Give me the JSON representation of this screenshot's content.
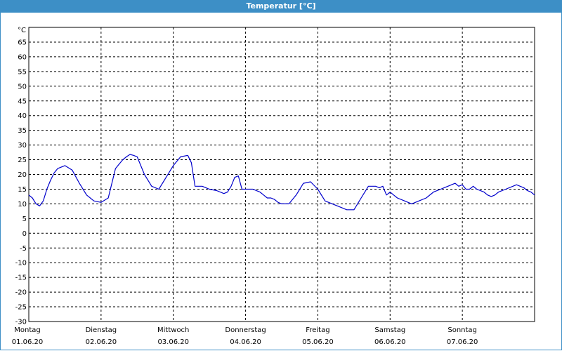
{
  "window": {
    "title": "Temperatur [°C]"
  },
  "chart_data": {
    "type": "line",
    "title": "Temperatur [°C]",
    "unit_label": "°C",
    "ylim": [
      -30,
      70
    ],
    "yticks": [
      65,
      60,
      55,
      50,
      45,
      40,
      35,
      30,
      25,
      20,
      15,
      10,
      5,
      0,
      -5,
      -10,
      -15,
      -20,
      -25,
      -30
    ],
    "xlim": [
      0,
      7
    ],
    "grid": true,
    "days": [
      {
        "name": "Montag",
        "date": "01.06.20"
      },
      {
        "name": "Dienstag",
        "date": "02.06.20"
      },
      {
        "name": "Mittwoch",
        "date": "03.06.20"
      },
      {
        "name": "Donnerstag",
        "date": "04.06.20"
      },
      {
        "name": "Freitag",
        "date": "05.06.20"
      },
      {
        "name": "Samstag",
        "date": "06.06.20"
      },
      {
        "name": "Sonntag",
        "date": "07.06.20"
      }
    ],
    "line_color": "#0000cc",
    "series": [
      {
        "x": [
          0,
          0.05,
          0.1,
          0.15,
          0.2,
          0.25,
          0.3,
          0.35,
          0.4,
          0.5,
          0.6,
          0.7,
          0.8,
          0.9,
          1.0,
          1.1,
          1.2,
          1.25,
          1.3,
          1.35,
          1.4,
          1.45,
          1.5,
          1.55,
          1.6,
          1.7,
          1.8,
          1.9,
          2.0,
          2.1,
          2.2,
          2.25,
          2.3,
          2.35,
          2.4,
          2.45,
          2.5,
          2.6,
          2.7,
          2.75,
          2.8,
          2.85,
          2.9,
          2.95,
          3.0,
          3.1,
          3.2,
          3.25,
          3.3,
          3.35,
          3.4,
          3.45,
          3.5,
          3.55,
          3.6,
          3.7,
          3.8,
          3.9,
          4.0,
          4.1,
          4.2,
          4.3,
          4.4,
          4.5,
          4.6,
          4.65,
          4.7,
          4.8,
          4.85,
          4.9,
          4.95,
          5.0,
          5.05,
          5.1,
          5.2,
          5.3,
          5.4,
          5.5,
          5.6,
          5.7,
          5.8,
          5.85,
          5.9,
          5.95,
          6.0,
          6.05,
          6.1,
          6.15,
          6.2,
          6.3,
          6.35,
          6.4,
          6.45,
          6.5,
          6.6,
          6.7,
          6.75,
          6.8,
          6.85,
          6.9,
          6.95,
          7.0
        ],
        "y": [
          13,
          12,
          10,
          9.3,
          11,
          15,
          18,
          20.5,
          22,
          23,
          21.5,
          17,
          13,
          11,
          10.5,
          12,
          22,
          23.5,
          25,
          26,
          26.8,
          26.5,
          26,
          23,
          20,
          16,
          15,
          19,
          23,
          26,
          26.5,
          24,
          16,
          16,
          16,
          15.5,
          15,
          14.5,
          13.5,
          14,
          16,
          19,
          19.5,
          15,
          15,
          15,
          14,
          13,
          12,
          12,
          11.5,
          10.5,
          10,
          10,
          10,
          13,
          17,
          17.5,
          15,
          11,
          10,
          9,
          8,
          8,
          12,
          14,
          16,
          16,
          15.5,
          16,
          13,
          14,
          13,
          12,
          11,
          10,
          11,
          12,
          14,
          15,
          16,
          16.5,
          17,
          16,
          16.5,
          15,
          15,
          16,
          15,
          14,
          13,
          12.5,
          13,
          14,
          15,
          16,
          16.5,
          16,
          15.5,
          14.5,
          14,
          13
        ]
      }
    ]
  }
}
